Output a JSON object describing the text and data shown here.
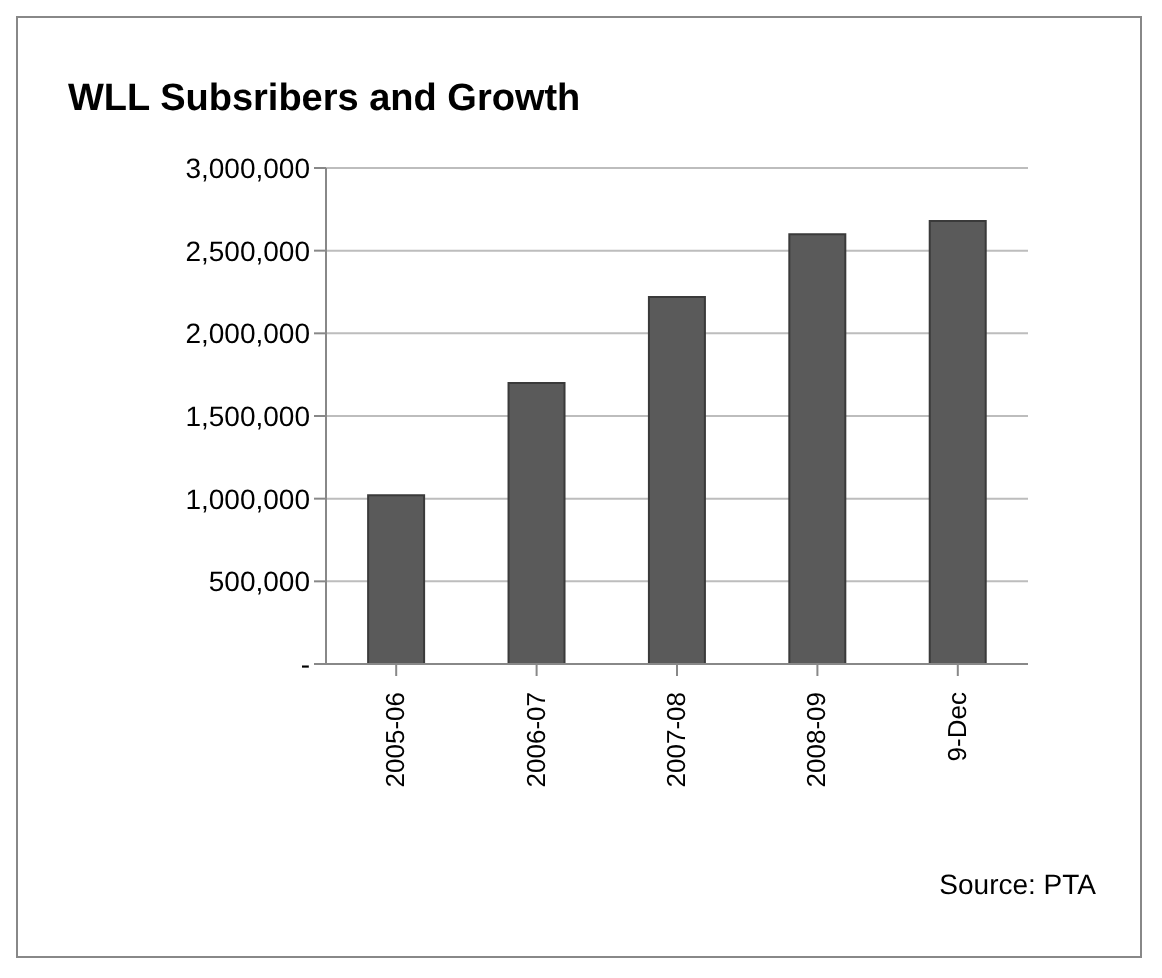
{
  "chart_data": {
    "type": "bar",
    "title": "WLL Subsribers and Growth",
    "categories": [
      "2005-06",
      "2006-07",
      "2007-08",
      "2008-09",
      "9-Dec"
    ],
    "values": [
      1020000,
      1700000,
      2220000,
      2600000,
      2680000
    ],
    "color": "#5a5a5a",
    "ylim": [
      0,
      3000000
    ],
    "yticks": [
      {
        "value": 0,
        "label": "-"
      },
      {
        "value": 500000,
        "label": "500,000"
      },
      {
        "value": 1000000,
        "label": "1,000,000"
      },
      {
        "value": 1500000,
        "label": "1,500,000"
      },
      {
        "value": 2000000,
        "label": "2,000,000"
      },
      {
        "value": 2500000,
        "label": "2,500,000"
      },
      {
        "value": 3000000,
        "label": "3,000,000"
      }
    ],
    "grid": "y",
    "annotations": [
      "Source: PTA"
    ]
  }
}
